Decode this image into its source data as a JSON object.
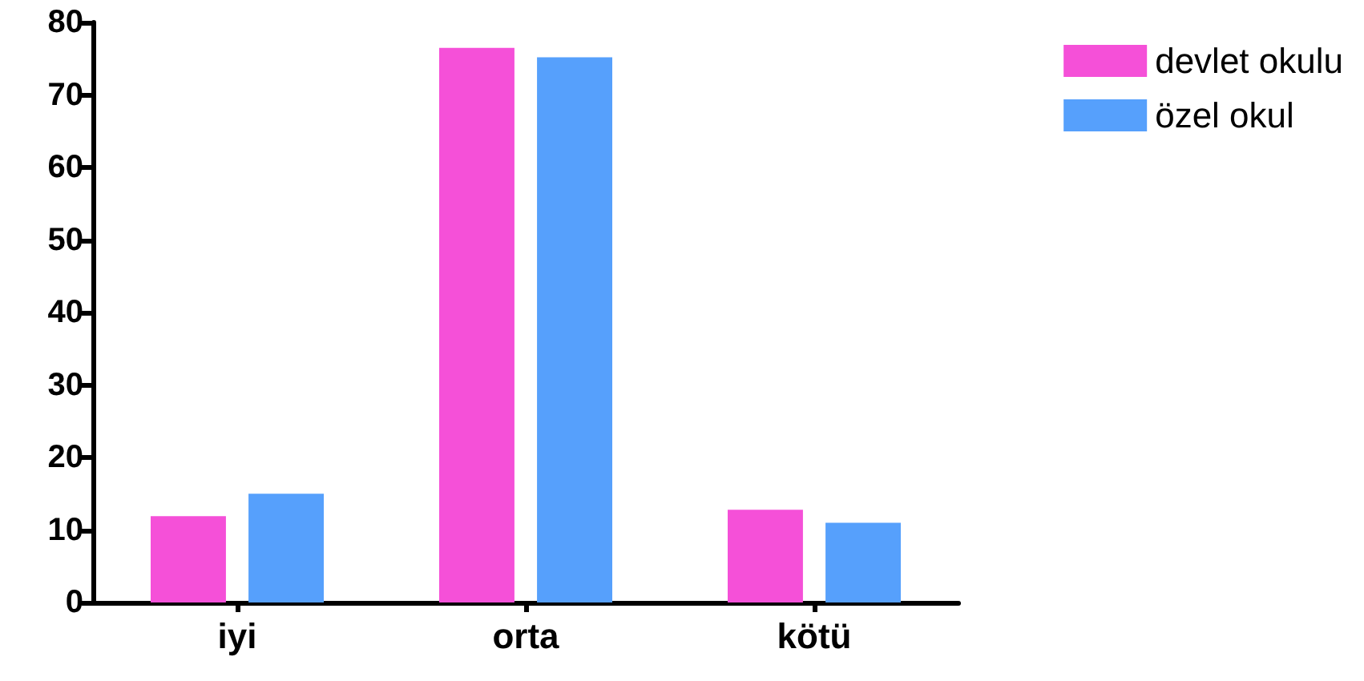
{
  "chart_data": {
    "type": "bar",
    "categories": [
      "iyi",
      "orta",
      "kötü"
    ],
    "series": [
      {
        "name": "devlet okulu",
        "color": "#f550d8",
        "values": [
          11.9,
          76.5,
          12.8
        ]
      },
      {
        "name": "özel okul",
        "color": "#56a0fc",
        "values": [
          15.0,
          75.2,
          11.0
        ]
      }
    ],
    "ylim": [
      0,
      80
    ],
    "yticks": [
      0,
      10,
      20,
      30,
      40,
      50,
      60,
      70,
      80
    ],
    "grid": false,
    "legend": "top right"
  }
}
